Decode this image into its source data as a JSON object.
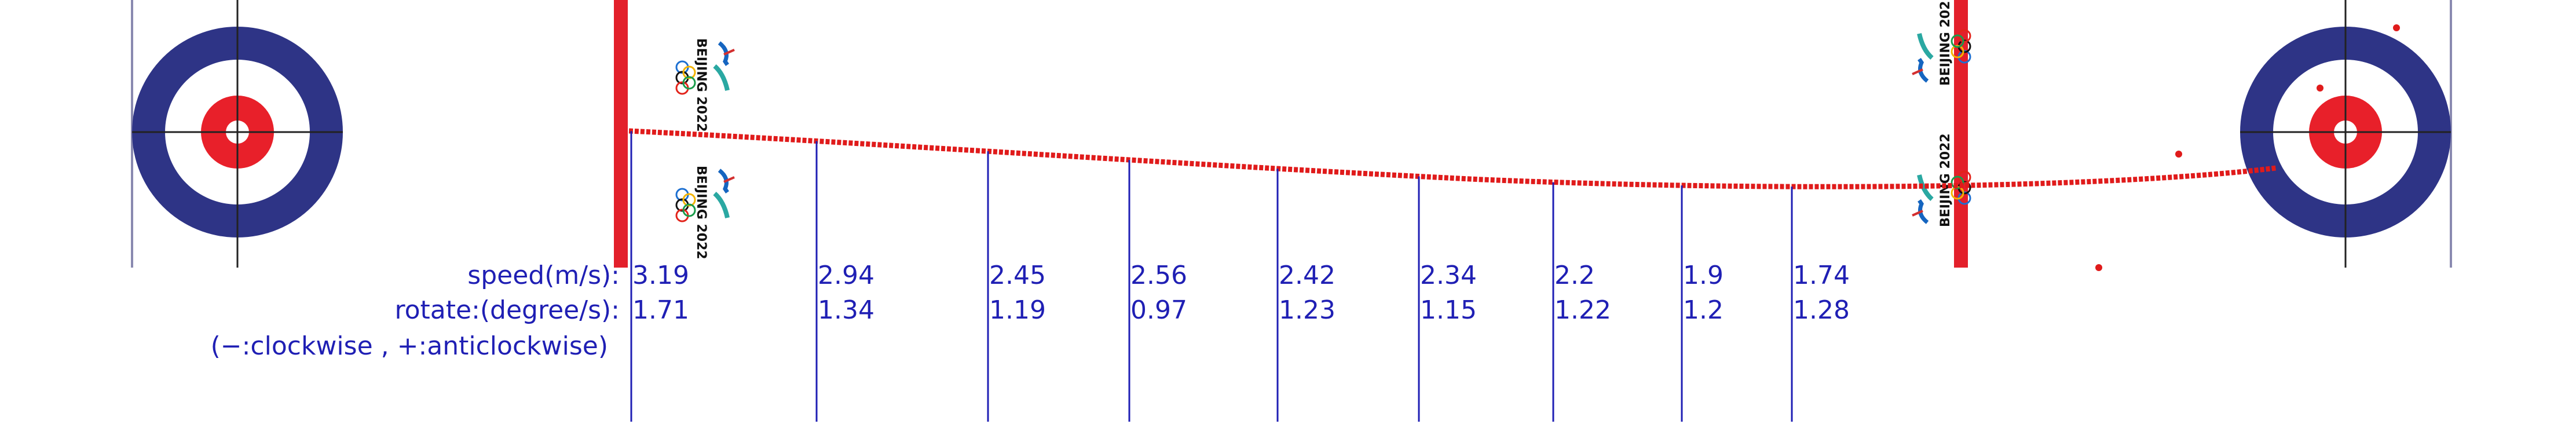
{
  "labels": {
    "speed_title": "speed(m/s):",
    "rotate_title": "rotate:(degree/s):",
    "direction_note": "(−:clockwise , +:anticlockwise)"
  },
  "logo": {
    "text": "BEIJING 2022"
  },
  "measurements": [
    {
      "speed": "3.19",
      "rotate": "1.71"
    },
    {
      "speed": "2.94",
      "rotate": "1.34"
    },
    {
      "speed": "2.45",
      "rotate": "1.19"
    },
    {
      "speed": "2.56",
      "rotate": "0.97"
    },
    {
      "speed": "2.42",
      "rotate": "1.23"
    },
    {
      "speed": "2.34",
      "rotate": "1.15"
    },
    {
      "speed": "2.2",
      "rotate": "1.22"
    },
    {
      "speed": "1.9",
      "rotate": "1.2"
    },
    {
      "speed": "1.74",
      "rotate": "1.28"
    }
  ],
  "colors": {
    "house_outer": "#2e3486",
    "house_red": "#e8202a",
    "trajectory": "#e01b1b",
    "hog_line": "#e3202b",
    "label_text": "#1f1fb4",
    "guide_line": "#1f1fb4"
  }
}
